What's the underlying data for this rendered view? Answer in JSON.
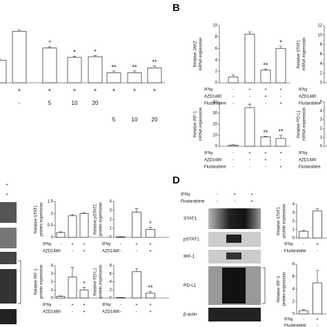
{
  "figure": {
    "panel_labels": [
      "B",
      "D"
    ],
    "blot_c_signs": [
      "+",
      "+"
    ],
    "blot_d_header": [
      {
        "name": "IFNγ",
        "signs": [
          "-",
          "+",
          "+"
        ]
      },
      {
        "name": "Fludarabine",
        "signs": [
          "-",
          "-",
          "+"
        ]
      }
    ],
    "blot_d_rows": [
      "STAT1",
      "pSTAT1",
      "IRF-1",
      "PD-L1",
      "β-actin"
    ]
  },
  "chart_data": [
    {
      "type": "bar",
      "values": [
        36,
        83,
        56,
        41,
        42,
        16,
        16,
        24
      ],
      "errors": [
        2,
        2,
        2,
        2,
        2,
        3,
        3,
        3
      ],
      "annotations": [
        null,
        null,
        "*",
        "*",
        "*",
        "**",
        "**",
        "**"
      ],
      "ylim": [
        0,
        100
      ],
      "treatments": [
        {
          "name": null,
          "signs": [
            null,
            "+",
            "+",
            "+",
            "+",
            "+",
            "+",
            "+"
          ]
        },
        {
          "name": null,
          "signs": [
            null,
            "-",
            "5",
            "10",
            "20",
            null,
            null,
            null
          ]
        },
        {
          "name": null,
          "signs": [
            null,
            null,
            null,
            null,
            null,
            "5",
            "10",
            "20"
          ]
        }
      ]
    },
    {
      "type": "bar",
      "y_label": [
        "Relative JAK2",
        "mRNA expression"
      ],
      "values": [
        1.0,
        8.5,
        2.2,
        6.0
      ],
      "errors": [
        0.4,
        0.4,
        0.2,
        0.4
      ],
      "annotations": [
        null,
        null,
        "**",
        "*"
      ],
      "ylim": [
        0,
        10
      ],
      "yticks": [
        0,
        2,
        4,
        6,
        8,
        10
      ],
      "treatments": [
        {
          "name": "IFNγ",
          "signs": [
            "-",
            "+",
            "+",
            "+"
          ]
        },
        {
          "name": "AZD1480",
          "signs": [
            "-",
            "-",
            "+",
            "-"
          ]
        },
        {
          "name": "Fludarabine",
          "signs": [
            "-",
            "-",
            "-",
            "+"
          ]
        }
      ]
    },
    {
      "type": "bar",
      "y_label": [
        "Relative STAT1",
        "mRNA expression"
      ],
      "values": [],
      "ylim": [
        0,
        12
      ],
      "yticks": [
        0,
        2,
        4,
        6,
        8,
        10,
        12
      ],
      "treatments": [
        {
          "name": "IFNγ",
          "signs": []
        },
        {
          "name": "AZD1480",
          "signs": []
        },
        {
          "name": "Fludarabine",
          "signs": []
        }
      ]
    },
    {
      "type": "bar",
      "y_label": [
        "Relative IRF-1",
        "mRNA expression"
      ],
      "values": [
        1,
        35,
        8.5,
        7
      ],
      "errors": [
        0.3,
        3,
        0.5,
        3
      ],
      "annotations": [
        null,
        null,
        "**",
        "**"
      ],
      "ylim": [
        0,
        40
      ],
      "yticks": [
        0,
        10,
        20,
        30,
        40
      ],
      "treatments": [
        {
          "name": "IFNγ",
          "signs": [
            "-",
            "+",
            "+",
            "+"
          ]
        },
        {
          "name": "AZD1480",
          "signs": [
            "-",
            "-",
            "+",
            "-"
          ]
        },
        {
          "name": "Fludarabine",
          "signs": [
            "-",
            "-",
            "-",
            "+"
          ]
        }
      ]
    },
    {
      "type": "bar",
      "y_label": [
        "Relative PD-L1",
        "mRNA expression"
      ],
      "values": [],
      "ylim": [
        0,
        5
      ],
      "yticks": [
        0,
        1,
        2,
        3,
        4,
        5
      ],
      "treatments": [
        {
          "name": "IFNγ",
          "signs": []
        },
        {
          "name": "AZD1480",
          "signs": []
        },
        {
          "name": "Fludarabine",
          "signs": []
        }
      ]
    },
    {
      "type": "bar",
      "y_label": [
        "Relative STAT1",
        "protein expression"
      ],
      "values": [
        0.2,
        0.9,
        1.0
      ],
      "errors": [
        0.03,
        0.05,
        0.02
      ],
      "annotations": [
        null,
        null,
        null
      ],
      "ylim": [
        0,
        1.5
      ],
      "yticks": [
        0,
        0.5,
        1,
        1.5
      ],
      "treatments": [
        {
          "name": "IFNγ",
          "signs": [
            "-",
            "+",
            "+"
          ]
        },
        {
          "name": "AZD1480",
          "signs": [
            "-",
            "-",
            "+"
          ]
        }
      ]
    },
    {
      "type": "bar",
      "y_label": [
        "Relative pSTAT1",
        "protein expression"
      ],
      "values": [
        0.05,
        2.8,
        0.9
      ],
      "errors": [
        0.02,
        0.4,
        0.2
      ],
      "annotations": [
        null,
        null,
        "*"
      ],
      "ylim": [
        0,
        4
      ],
      "yticks": [
        0,
        1,
        2,
        3,
        4
      ],
      "treatments": [
        {
          "name": "IFNγ",
          "signs": [
            "-",
            "+",
            "+"
          ]
        },
        {
          "name": "AZD1480",
          "signs": [
            "-",
            "-",
            "+"
          ]
        }
      ]
    },
    {
      "type": "bar",
      "y_label": [
        "Relative IRF-1",
        "protein expression"
      ],
      "values": [
        0.2,
        2.6,
        1.0
      ],
      "errors": [
        0.05,
        1.2,
        0.3
      ],
      "annotations": [
        null,
        null,
        "*"
      ],
      "ylim": [
        0,
        4
      ],
      "yticks": [
        0,
        1,
        2,
        3,
        4
      ],
      "treatments": [
        {
          "name": "IFNγ",
          "signs": [
            "-",
            "+",
            "+"
          ]
        },
        {
          "name": "AZD1480",
          "signs": [
            "-",
            "-",
            "+"
          ]
        }
      ]
    },
    {
      "type": "bar",
      "y_label": [
        "Relative PD-L1",
        "protein expression"
      ],
      "values": [
        0.1,
        6.5,
        1.2
      ],
      "errors": [
        0.05,
        0.8,
        0.4
      ],
      "annotations": [
        null,
        null,
        "**"
      ],
      "ylim": [
        0,
        8
      ],
      "yticks": [
        0,
        2,
        4,
        6,
        8
      ],
      "treatments": [
        {
          "name": "IFNγ",
          "signs": [
            "-",
            "+",
            "+"
          ]
        },
        {
          "name": "AZD1480",
          "signs": [
            "-",
            "-",
            "+"
          ]
        }
      ]
    },
    {
      "type": "bar",
      "y_label": [
        "Relative STAT1",
        "protein expression"
      ],
      "values": [
        0.8,
        3.2
      ],
      "errors": [
        0.1,
        0.3
      ],
      "annotations": [
        null,
        null
      ],
      "ylim": [
        0,
        4
      ],
      "yticks": [
        0,
        1,
        2,
        3,
        4
      ],
      "treatments": [
        {
          "name": "IFNγ",
          "signs": [
            "-",
            "+"
          ]
        },
        {
          "name": "Fludarabine",
          "signs": [
            "-",
            "-"
          ]
        }
      ]
    },
    {
      "type": "bar",
      "y_label": [
        "Relative IRF-1",
        "protein expression"
      ],
      "values": [
        0.5,
        5.0
      ],
      "errors": [
        0.2,
        2.0
      ],
      "annotations": [
        null,
        null
      ],
      "ylim": [
        0,
        8
      ],
      "yticks": [
        0,
        2,
        4,
        6,
        8
      ],
      "treatments": [
        {
          "name": "IFNγ",
          "signs": [
            "-",
            "+"
          ]
        },
        {
          "name": "Fludarabine",
          "signs": [
            "-",
            "-"
          ]
        }
      ]
    }
  ]
}
